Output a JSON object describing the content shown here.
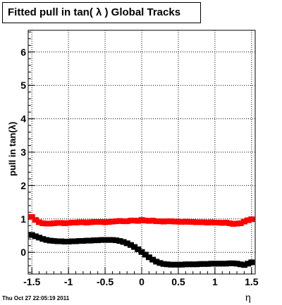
{
  "chart_data": {
    "type": "scatter",
    "title": "Fitted pull in tan( λ )  Global Tracks",
    "ylabel": "pull in tan(λ)",
    "xlabel": "η",
    "xlim": [
      -1.55,
      1.55
    ],
    "ylim": [
      -0.65,
      6.65
    ],
    "grid": true,
    "xticks": [
      -1.5,
      -1,
      -0.5,
      0,
      0.5,
      1,
      1.5
    ],
    "xtick_labels": [
      "-1.5",
      "-1",
      "-0.5",
      "0",
      "0.5",
      "1",
      "1.5"
    ],
    "yticks": [
      0,
      1,
      2,
      3,
      4,
      5,
      6
    ],
    "ytick_labels": [
      "0",
      "1",
      "2",
      "3",
      "4",
      "5",
      "6"
    ],
    "series": [
      {
        "color": "#ff0000",
        "x": [
          -1.5,
          -1.45,
          -1.4,
          -1.35,
          -1.3,
          -1.25,
          -1.2,
          -1.15,
          -1.1,
          -1.05,
          -1.0,
          -0.95,
          -0.9,
          -0.85,
          -0.8,
          -0.75,
          -0.7,
          -0.65,
          -0.6,
          -0.55,
          -0.5,
          -0.45,
          -0.4,
          -0.35,
          -0.3,
          -0.25,
          -0.2,
          -0.15,
          -0.1,
          -0.05,
          0.0,
          0.05,
          0.1,
          0.15,
          0.2,
          0.25,
          0.3,
          0.35,
          0.4,
          0.45,
          0.5,
          0.55,
          0.6,
          0.65,
          0.7,
          0.75,
          0.8,
          0.85,
          0.9,
          0.95,
          1.0,
          1.05,
          1.1,
          1.15,
          1.2,
          1.25,
          1.3,
          1.35,
          1.4,
          1.45,
          1.5
        ],
        "y": [
          1.06,
          0.97,
          0.9,
          0.87,
          0.86,
          0.86,
          0.87,
          0.88,
          0.88,
          0.87,
          0.88,
          0.89,
          0.89,
          0.9,
          0.9,
          0.89,
          0.9,
          0.91,
          0.91,
          0.91,
          0.9,
          0.91,
          0.92,
          0.93,
          0.94,
          0.93,
          0.93,
          0.95,
          0.95,
          0.94,
          0.97,
          0.95,
          0.94,
          0.95,
          0.93,
          0.93,
          0.92,
          0.93,
          0.93,
          0.92,
          0.92,
          0.91,
          0.92,
          0.91,
          0.91,
          0.9,
          0.9,
          0.9,
          0.89,
          0.9,
          0.89,
          0.89,
          0.88,
          0.89,
          0.87,
          0.85,
          0.86,
          0.87,
          0.92,
          0.96,
          0.99
        ]
      },
      {
        "color": "#000000",
        "x": [
          -1.5,
          -1.45,
          -1.4,
          -1.35,
          -1.3,
          -1.25,
          -1.2,
          -1.15,
          -1.1,
          -1.05,
          -1.0,
          -0.95,
          -0.9,
          -0.85,
          -0.8,
          -0.75,
          -0.7,
          -0.65,
          -0.6,
          -0.55,
          -0.5,
          -0.45,
          -0.4,
          -0.35,
          -0.3,
          -0.25,
          -0.2,
          -0.15,
          -0.1,
          -0.05,
          0.0,
          0.05,
          0.1,
          0.15,
          0.2,
          0.25,
          0.3,
          0.35,
          0.4,
          0.45,
          0.5,
          0.55,
          0.6,
          0.65,
          0.7,
          0.75,
          0.8,
          0.85,
          0.9,
          0.95,
          1.0,
          1.05,
          1.1,
          1.15,
          1.2,
          1.25,
          1.3,
          1.35,
          1.4,
          1.45,
          1.5
        ],
        "y": [
          0.52,
          0.48,
          0.44,
          0.4,
          0.37,
          0.35,
          0.34,
          0.33,
          0.33,
          0.32,
          0.32,
          0.33,
          0.33,
          0.34,
          0.34,
          0.35,
          0.35,
          0.36,
          0.36,
          0.37,
          0.37,
          0.37,
          0.37,
          0.36,
          0.34,
          0.31,
          0.27,
          0.22,
          0.16,
          0.09,
          0.01,
          -0.07,
          -0.15,
          -0.22,
          -0.28,
          -0.32,
          -0.35,
          -0.36,
          -0.37,
          -0.37,
          -0.37,
          -0.37,
          -0.36,
          -0.36,
          -0.36,
          -0.36,
          -0.35,
          -0.35,
          -0.35,
          -0.34,
          -0.34,
          -0.34,
          -0.34,
          -0.34,
          -0.33,
          -0.33,
          -0.34,
          -0.36,
          -0.38,
          -0.34,
          -0.3
        ]
      }
    ]
  },
  "footer": "Thu Oct 27 22:05:19 2011"
}
